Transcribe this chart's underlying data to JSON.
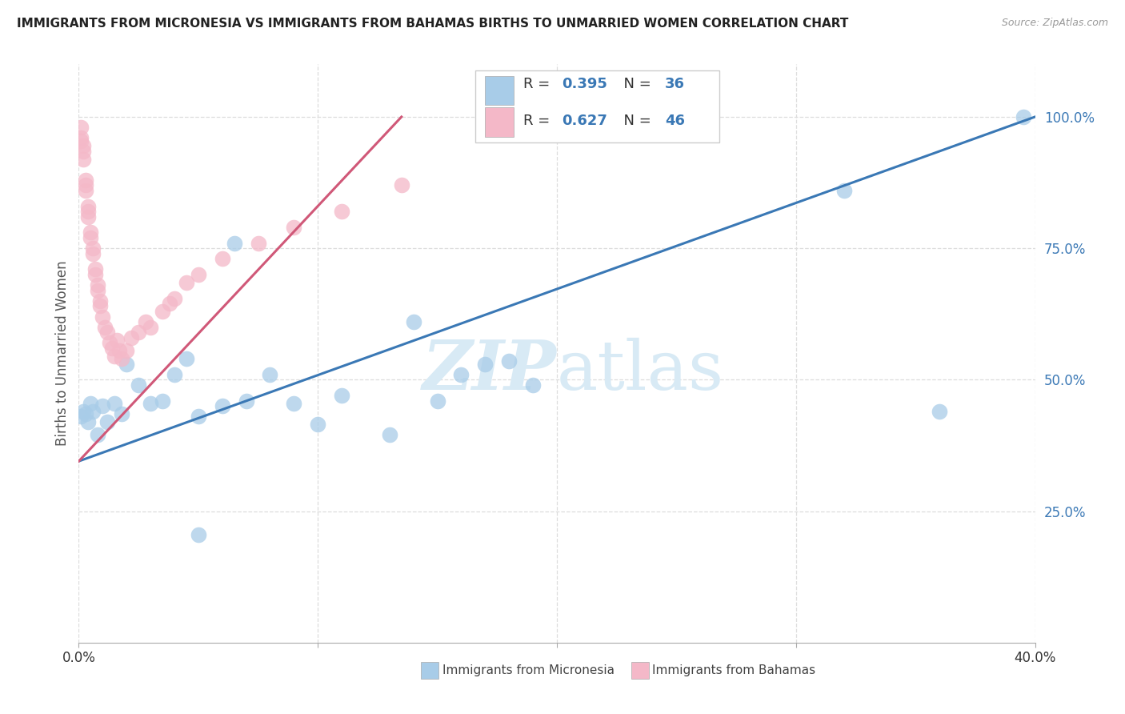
{
  "title": "IMMIGRANTS FROM MICRONESIA VS IMMIGRANTS FROM BAHAMAS BIRTHS TO UNMARRIED WOMEN CORRELATION CHART",
  "source": "Source: ZipAtlas.com",
  "ylabel": "Births to Unmarried Women",
  "xlabel_blue": "Immigrants from Micronesia",
  "xlabel_pink": "Immigrants from Bahamas",
  "xmin": 0.0,
  "xmax": 0.4,
  "ymin": 0.0,
  "ymax": 1.1,
  "ytick_vals": [
    0.25,
    0.5,
    0.75,
    1.0
  ],
  "ytick_labels": [
    "25.0%",
    "50.0%",
    "75.0%",
    "100.0%"
  ],
  "xtick_vals": [
    0.0,
    0.1,
    0.2,
    0.3,
    0.4
  ],
  "xtick_labels": [
    "0.0%",
    "",
    "",
    "",
    "40.0%"
  ],
  "blue_R": 0.395,
  "blue_N": 36,
  "pink_R": 0.627,
  "pink_N": 46,
  "blue_color": "#A8CCE8",
  "pink_color": "#F4B8C8",
  "line_blue": "#3A78B5",
  "line_pink": "#D05878",
  "text_blue": "#3A78B5",
  "watermark_color": "#D8EAF5",
  "background_color": "#FFFFFF",
  "grid_color": "#DDDDDD",
  "blue_x": [
    0.001,
    0.002,
    0.003,
    0.004,
    0.005,
    0.006,
    0.008,
    0.01,
    0.012,
    0.015,
    0.018,
    0.02,
    0.025,
    0.03,
    0.035,
    0.04,
    0.045,
    0.05,
    0.06,
    0.065,
    0.08,
    0.09,
    0.1,
    0.11,
    0.13,
    0.14,
    0.15,
    0.16,
    0.17,
    0.18,
    0.05,
    0.07,
    0.19,
    0.32,
    0.36,
    0.395
  ],
  "blue_y": [
    0.43,
    0.44,
    0.435,
    0.42,
    0.455,
    0.44,
    0.395,
    0.45,
    0.42,
    0.455,
    0.435,
    0.53,
    0.49,
    0.455,
    0.46,
    0.51,
    0.54,
    0.43,
    0.45,
    0.76,
    0.51,
    0.455,
    0.415,
    0.47,
    0.395,
    0.61,
    0.46,
    0.51,
    0.53,
    0.535,
    0.205,
    0.46,
    0.49,
    0.86,
    0.44,
    1.0
  ],
  "pink_x": [
    0.001,
    0.001,
    0.001,
    0.002,
    0.002,
    0.002,
    0.003,
    0.003,
    0.003,
    0.004,
    0.004,
    0.004,
    0.005,
    0.005,
    0.006,
    0.006,
    0.007,
    0.007,
    0.008,
    0.008,
    0.009,
    0.009,
    0.01,
    0.011,
    0.012,
    0.013,
    0.014,
    0.015,
    0.016,
    0.017,
    0.018,
    0.02,
    0.022,
    0.025,
    0.028,
    0.03,
    0.035,
    0.038,
    0.04,
    0.045,
    0.05,
    0.06,
    0.075,
    0.09,
    0.11,
    0.135
  ],
  "pink_y": [
    0.955,
    0.96,
    0.98,
    0.92,
    0.935,
    0.945,
    0.87,
    0.88,
    0.86,
    0.82,
    0.83,
    0.81,
    0.77,
    0.78,
    0.74,
    0.75,
    0.7,
    0.71,
    0.67,
    0.68,
    0.64,
    0.65,
    0.62,
    0.6,
    0.59,
    0.57,
    0.56,
    0.545,
    0.575,
    0.555,
    0.54,
    0.555,
    0.58,
    0.59,
    0.61,
    0.6,
    0.63,
    0.645,
    0.655,
    0.685,
    0.7,
    0.73,
    0.76,
    0.79,
    0.82,
    0.87
  ]
}
